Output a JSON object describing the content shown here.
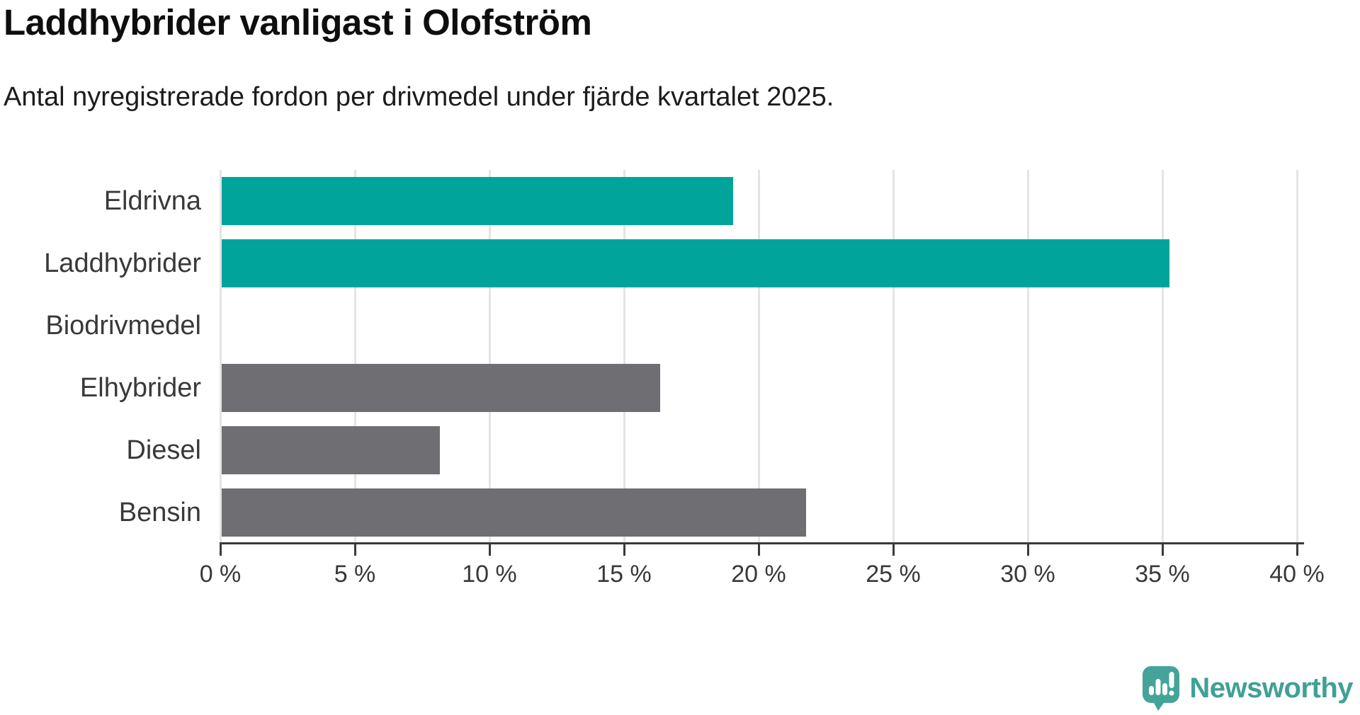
{
  "title": "Laddhybrider vanligast i Olofström",
  "subtitle": "Antal nyregistrerade fordon per drivmedel under fjärde kvartalet 2025.",
  "chart_data": {
    "type": "bar",
    "orientation": "horizontal",
    "categories": [
      "Eldrivna",
      "Laddhybrider",
      "Biodrivmedel",
      "Elhybrider",
      "Diesel",
      "Bensin"
    ],
    "series": [
      {
        "label": "Eldrivna",
        "value": 19.0,
        "color": "#00a49b"
      },
      {
        "label": "Laddhybrider",
        "value": 35.2,
        "color": "#00a49b"
      },
      {
        "label": "Biodrivmedel",
        "value": 0,
        "color": "#6f6e72"
      },
      {
        "label": "Elhybrider",
        "value": 16.3,
        "color": "#6f6e72"
      },
      {
        "label": "Diesel",
        "value": 8.1,
        "color": "#6f6e72"
      },
      {
        "label": "Bensin",
        "value": 21.7,
        "color": "#6f6e72"
      }
    ],
    "unit": "%",
    "xlim": [
      0,
      40
    ],
    "x_ticks": [
      0,
      5,
      10,
      15,
      20,
      25,
      30,
      35,
      40
    ],
    "x_tick_suffix": " %",
    "grid": true,
    "legend": "none",
    "highlight_color": "#00a49b",
    "default_color": "#6f6e72",
    "gridline_color": "#e4e4e4",
    "axis_color": "#3a3a3a",
    "label_color": "#39393b"
  },
  "footer": {
    "brand": "Newsworthy",
    "brand_color": "#3fa096",
    "logo_icon": "newsworthy-speech-bubble-chart-icon"
  }
}
